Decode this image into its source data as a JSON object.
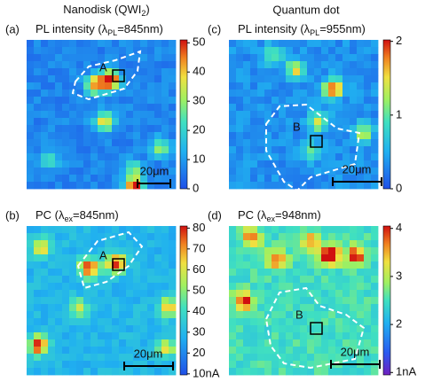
{
  "columns": [
    {
      "pre": "Nanodisk (QWI",
      "sub": "2",
      "post": ")"
    },
    {
      "pre": "Quantum dot"
    }
  ],
  "panels": [
    {
      "label": "(a)",
      "title": {
        "pre": "PL intensity (λ",
        "sub": "PL",
        "post": "=845nm)"
      },
      "region": "A",
      "scalebar": "20μm",
      "colorbar": {
        "clim": [
          0,
          51
        ],
        "ticks": [
          0,
          10,
          20,
          30,
          40,
          50
        ]
      }
    },
    {
      "label": "(c)",
      "title": {
        "pre": "PL intensity (λ",
        "sub": "PL",
        "post": "=955nm)"
      },
      "region": "B",
      "scalebar": "20μm",
      "colorbar": {
        "clim": [
          0,
          2.02
        ],
        "ticks": [
          0,
          1,
          2
        ]
      }
    },
    {
      "label": "(b)",
      "title": {
        "pre": "PC (λ",
        "sub": "ex",
        "post": "=845nm)"
      },
      "region": "A",
      "scalebar": "20μm",
      "colorbar": {
        "clim": [
          9.5,
          81
        ],
        "ticks": [
          {
            "value": 10,
            "label": "10nA"
          },
          20,
          30,
          40,
          50,
          60,
          70,
          80
        ]
      }
    },
    {
      "label": "(d)",
      "title": {
        "pre": "PC (λ",
        "sub": "ex",
        "post": "=948nm)"
      },
      "region": "B",
      "scalebar": "20μm",
      "colorbar": {
        "clim": [
          0.95,
          4.05
        ],
        "ticks": [
          {
            "value": 1,
            "label": "1nA"
          },
          2,
          3,
          4
        ]
      }
    }
  ]
}
